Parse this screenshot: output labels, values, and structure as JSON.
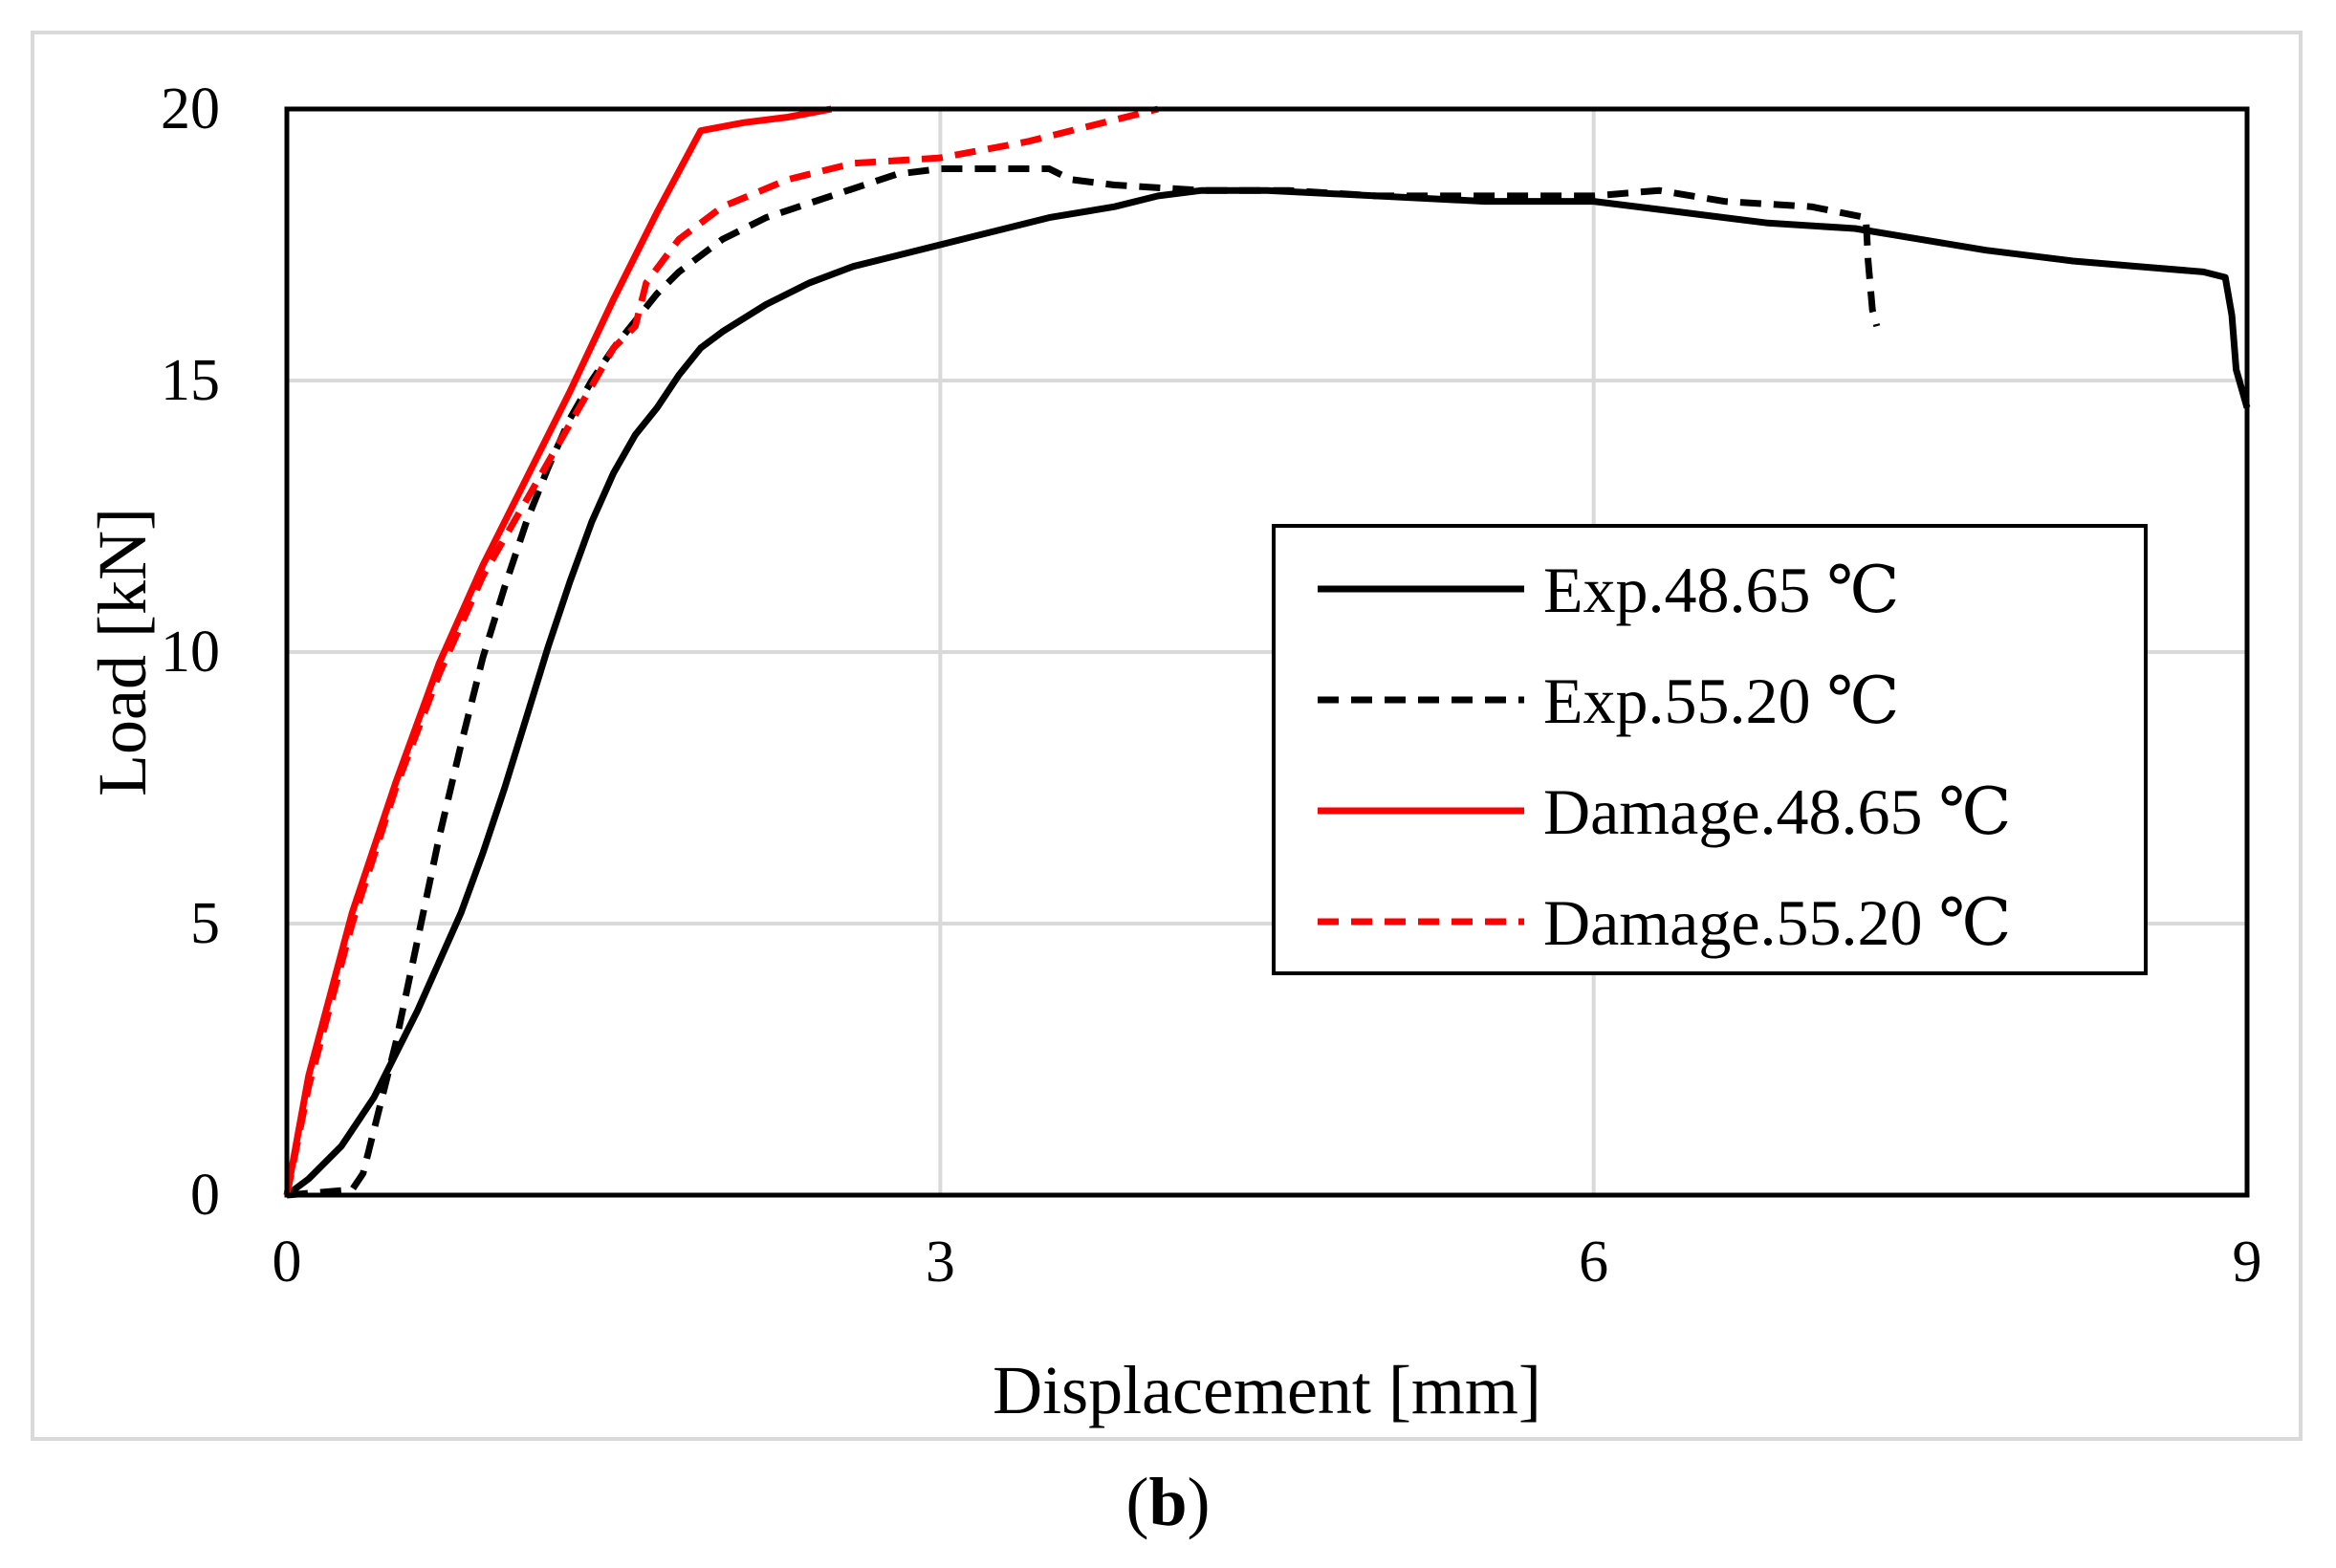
{
  "caption": {
    "open": "(",
    "letter": "b",
    "close": ")"
  },
  "chart_data": {
    "type": "line",
    "title": "",
    "xlabel": "Displacement [mm]",
    "ylabel": "Load [kN]",
    "xlim": [
      0,
      9
    ],
    "ylim": [
      0,
      20
    ],
    "xticks": [
      0,
      3,
      6,
      9
    ],
    "yticks": [
      0,
      5,
      10,
      15,
      20
    ],
    "grid": true,
    "legend_position": "center-right",
    "series": [
      {
        "name": "Exp.48.65 ℃",
        "color": "#000000",
        "dash": "solid",
        "x": [
          0,
          0.1,
          0.25,
          0.4,
          0.5,
          0.6,
          0.7,
          0.8,
          0.9,
          1.0,
          1.1,
          1.2,
          1.3,
          1.4,
          1.5,
          1.6,
          1.7,
          1.8,
          1.9,
          2.0,
          2.2,
          2.4,
          2.6,
          2.8,
          3.0,
          3.2,
          3.5,
          3.8,
          4.0,
          4.2,
          4.5,
          5.0,
          5.5,
          6.0,
          6.4,
          6.8,
          7.2,
          7.5,
          7.8,
          8.2,
          8.5,
          8.8,
          8.9,
          8.93,
          8.95,
          9.0
        ],
        "y": [
          0,
          0.3,
          0.9,
          1.8,
          2.6,
          3.4,
          4.3,
          5.2,
          6.3,
          7.5,
          8.8,
          10.1,
          11.3,
          12.4,
          13.3,
          14.0,
          14.5,
          15.1,
          15.6,
          15.9,
          16.4,
          16.8,
          17.1,
          17.3,
          17.5,
          17.7,
          18.0,
          18.2,
          18.4,
          18.5,
          18.5,
          18.4,
          18.3,
          18.3,
          18.1,
          17.9,
          17.8,
          17.6,
          17.4,
          17.2,
          17.1,
          17.0,
          16.9,
          16.2,
          15.2,
          14.5
        ]
      },
      {
        "name": "Exp.55.20 ℃",
        "color": "#000000",
        "dash": "dash",
        "x": [
          0,
          0.3,
          0.35,
          0.4,
          0.5,
          0.6,
          0.7,
          0.8,
          0.9,
          1.0,
          1.1,
          1.2,
          1.3,
          1.4,
          1.5,
          1.6,
          1.7,
          1.8,
          2.0,
          2.2,
          2.5,
          2.8,
          3.0,
          3.3,
          3.5,
          3.6,
          3.8,
          4.2,
          4.6,
          5.0,
          5.5,
          6.0,
          6.3,
          6.6,
          7.0,
          7.25,
          7.26,
          7.28,
          7.3
        ],
        "y": [
          0,
          0.1,
          0.4,
          1.2,
          2.8,
          4.7,
          6.6,
          8.3,
          9.9,
          11.2,
          12.4,
          13.4,
          14.3,
          15.0,
          15.6,
          16.1,
          16.6,
          17.0,
          17.6,
          18.0,
          18.4,
          18.8,
          18.9,
          18.9,
          18.9,
          18.7,
          18.6,
          18.5,
          18.5,
          18.4,
          18.4,
          18.4,
          18.5,
          18.3,
          18.2,
          18.0,
          17.2,
          16.3,
          16.0
        ]
      },
      {
        "name": "Damage.48.65 ℃",
        "color": "#ff0000",
        "dash": "solid",
        "x": [
          0,
          0.1,
          0.3,
          0.5,
          0.7,
          0.9,
          1.1,
          1.3,
          1.5,
          1.7,
          1.9,
          2.1,
          2.3,
          2.5
        ],
        "y": [
          0,
          2.2,
          5.2,
          7.6,
          9.8,
          11.6,
          13.2,
          14.8,
          16.5,
          18.1,
          19.6,
          19.75,
          19.85,
          20.0
        ]
      },
      {
        "name": "Damage.55.20 ℃",
        "color": "#ff0000",
        "dash": "dash",
        "x": [
          0,
          0.1,
          0.3,
          0.5,
          0.7,
          0.9,
          1.1,
          1.3,
          1.5,
          1.6,
          1.65,
          1.8,
          2.0,
          2.3,
          2.6,
          3.0,
          3.4,
          3.8,
          4.0
        ],
        "y": [
          0,
          2.0,
          5.0,
          7.5,
          9.6,
          11.4,
          12.8,
          14.2,
          15.6,
          16.0,
          16.8,
          17.6,
          18.2,
          18.7,
          19.0,
          19.1,
          19.4,
          19.8,
          20.0
        ]
      }
    ]
  }
}
